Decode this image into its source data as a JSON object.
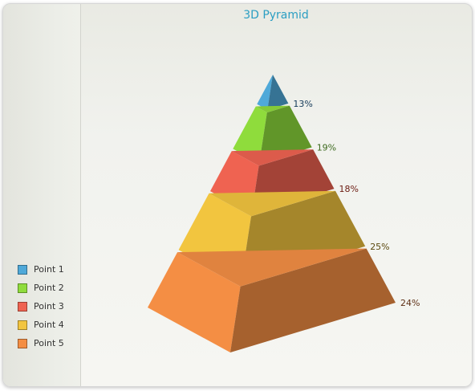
{
  "chart_data": {
    "type": "pyramid-3d",
    "title": "3D Pyramid",
    "categories": [
      "Point 1",
      "Point 2",
      "Point 3",
      "Point 4",
      "Point 5"
    ],
    "values": [
      13,
      19,
      18,
      25,
      24
    ],
    "value_labels": [
      "13%",
      "19%",
      "18%",
      "25%",
      "24%"
    ],
    "colors": [
      "#4fa9d9",
      "#8fdc3c",
      "#ef6351",
      "#f2c53f",
      "#f48e44"
    ],
    "label_colors": [
      "#143a5a",
      "#3d6a1e",
      "#6c1c12",
      "#5c4a10",
      "#5e3016"
    ],
    "legend_position": "left-bottom"
  }
}
